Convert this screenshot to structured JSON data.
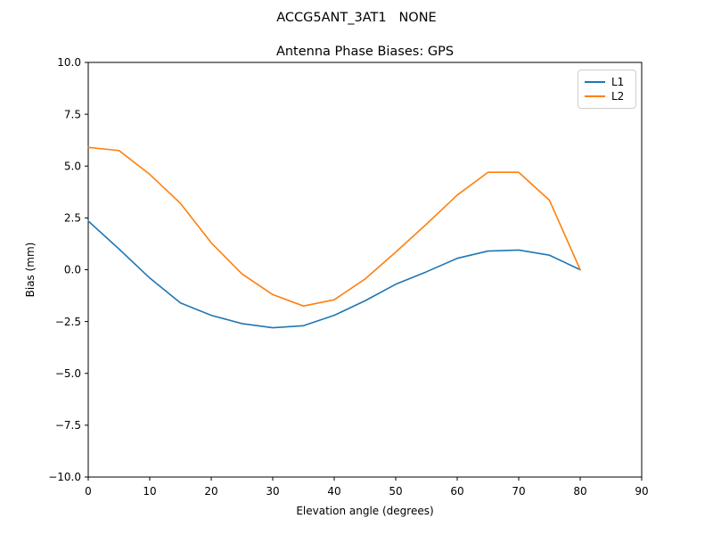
{
  "suptitle": "ACCG5ANT_3AT1   NONE",
  "colors": {
    "background": "#ffffff",
    "axes_line": "#000000",
    "text": "#000000",
    "legend_border": "#cccccc",
    "series_l1": "#1f77b4",
    "series_l2": "#ff7f0e"
  },
  "chart_data": {
    "type": "line",
    "title": "Antenna Phase Biases: GPS",
    "xlabel": "Elevation angle (degrees)",
    "ylabel": "Bias (mm)",
    "xlim": [
      0,
      90
    ],
    "ylim": [
      -10,
      10
    ],
    "x_ticks": [
      0,
      10,
      20,
      30,
      40,
      50,
      60,
      70,
      80,
      90
    ],
    "y_ticks": [
      -10,
      -7.5,
      -5,
      -2.5,
      0,
      2.5,
      5,
      7.5,
      10
    ],
    "y_tick_labels": [
      "−10.0",
      "−7.5",
      "−5.0",
      "−2.5",
      "0.0",
      "2.5",
      "5.0",
      "7.5",
      "10.0"
    ],
    "grid": false,
    "legend_position": "upper right",
    "x": [
      0,
      5,
      10,
      15,
      20,
      25,
      30,
      35,
      40,
      45,
      50,
      55,
      60,
      65,
      70,
      75,
      80
    ],
    "series": [
      {
        "name": "L1",
        "color": "#1f77b4",
        "values": [
          2.35,
          1.0,
          -0.4,
          -1.6,
          -2.2,
          -2.6,
          -2.8,
          -2.7,
          -2.2,
          -1.5,
          -0.7,
          -0.1,
          0.55,
          0.9,
          0.95,
          0.7,
          0.0
        ]
      },
      {
        "name": "L2",
        "color": "#ff7f0e",
        "values": [
          5.9,
          5.75,
          4.6,
          3.2,
          1.3,
          -0.2,
          -1.2,
          -1.75,
          -1.45,
          -0.45,
          0.85,
          2.2,
          3.6,
          4.7,
          4.7,
          3.35,
          0.0
        ]
      }
    ]
  }
}
